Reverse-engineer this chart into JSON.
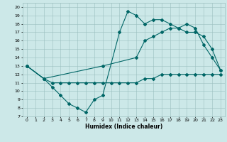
{
  "title": "",
  "xlabel": "Humidex (Indice chaleur)",
  "xlim": [
    -0.5,
    23.5
  ],
  "ylim": [
    7,
    20.5
  ],
  "xticks": [
    0,
    1,
    2,
    3,
    4,
    5,
    6,
    7,
    8,
    9,
    10,
    11,
    12,
    13,
    14,
    15,
    16,
    17,
    18,
    19,
    20,
    21,
    22,
    23
  ],
  "yticks": [
    7,
    8,
    9,
    10,
    11,
    12,
    13,
    14,
    15,
    16,
    17,
    18,
    19,
    20
  ],
  "bg_color": "#cce8e8",
  "line_color": "#006666",
  "lines": [
    {
      "x": [
        0,
        2,
        3,
        4,
        5,
        6,
        7,
        8,
        9,
        10,
        11,
        12,
        13,
        14,
        15,
        16,
        17,
        18,
        19,
        20,
        21,
        22,
        23
      ],
      "y": [
        13,
        11.5,
        11,
        11,
        11,
        11,
        11,
        11,
        11,
        11,
        11,
        11,
        11,
        11.5,
        11.5,
        12,
        12,
        12,
        12,
        12,
        12,
        12,
        12
      ]
    },
    {
      "x": [
        0,
        2,
        9,
        13,
        14,
        15,
        16,
        17,
        18,
        19,
        20,
        21,
        22,
        23
      ],
      "y": [
        13,
        11.5,
        13,
        14,
        16,
        16.5,
        17,
        17.5,
        17.5,
        17,
        17,
        16.5,
        15,
        12.5
      ]
    },
    {
      "x": [
        0,
        2,
        3,
        4,
        5,
        6,
        7,
        8,
        9,
        11,
        12,
        13,
        14,
        15,
        16,
        17,
        18,
        19,
        20,
        21,
        22,
        23
      ],
      "y": [
        13,
        11.5,
        10.5,
        9.5,
        8.5,
        8,
        7.5,
        9,
        9.5,
        17,
        19.5,
        19,
        18,
        18.5,
        18.5,
        18,
        17.5,
        18,
        17.5,
        15.5,
        14,
        12.5
      ]
    }
  ]
}
